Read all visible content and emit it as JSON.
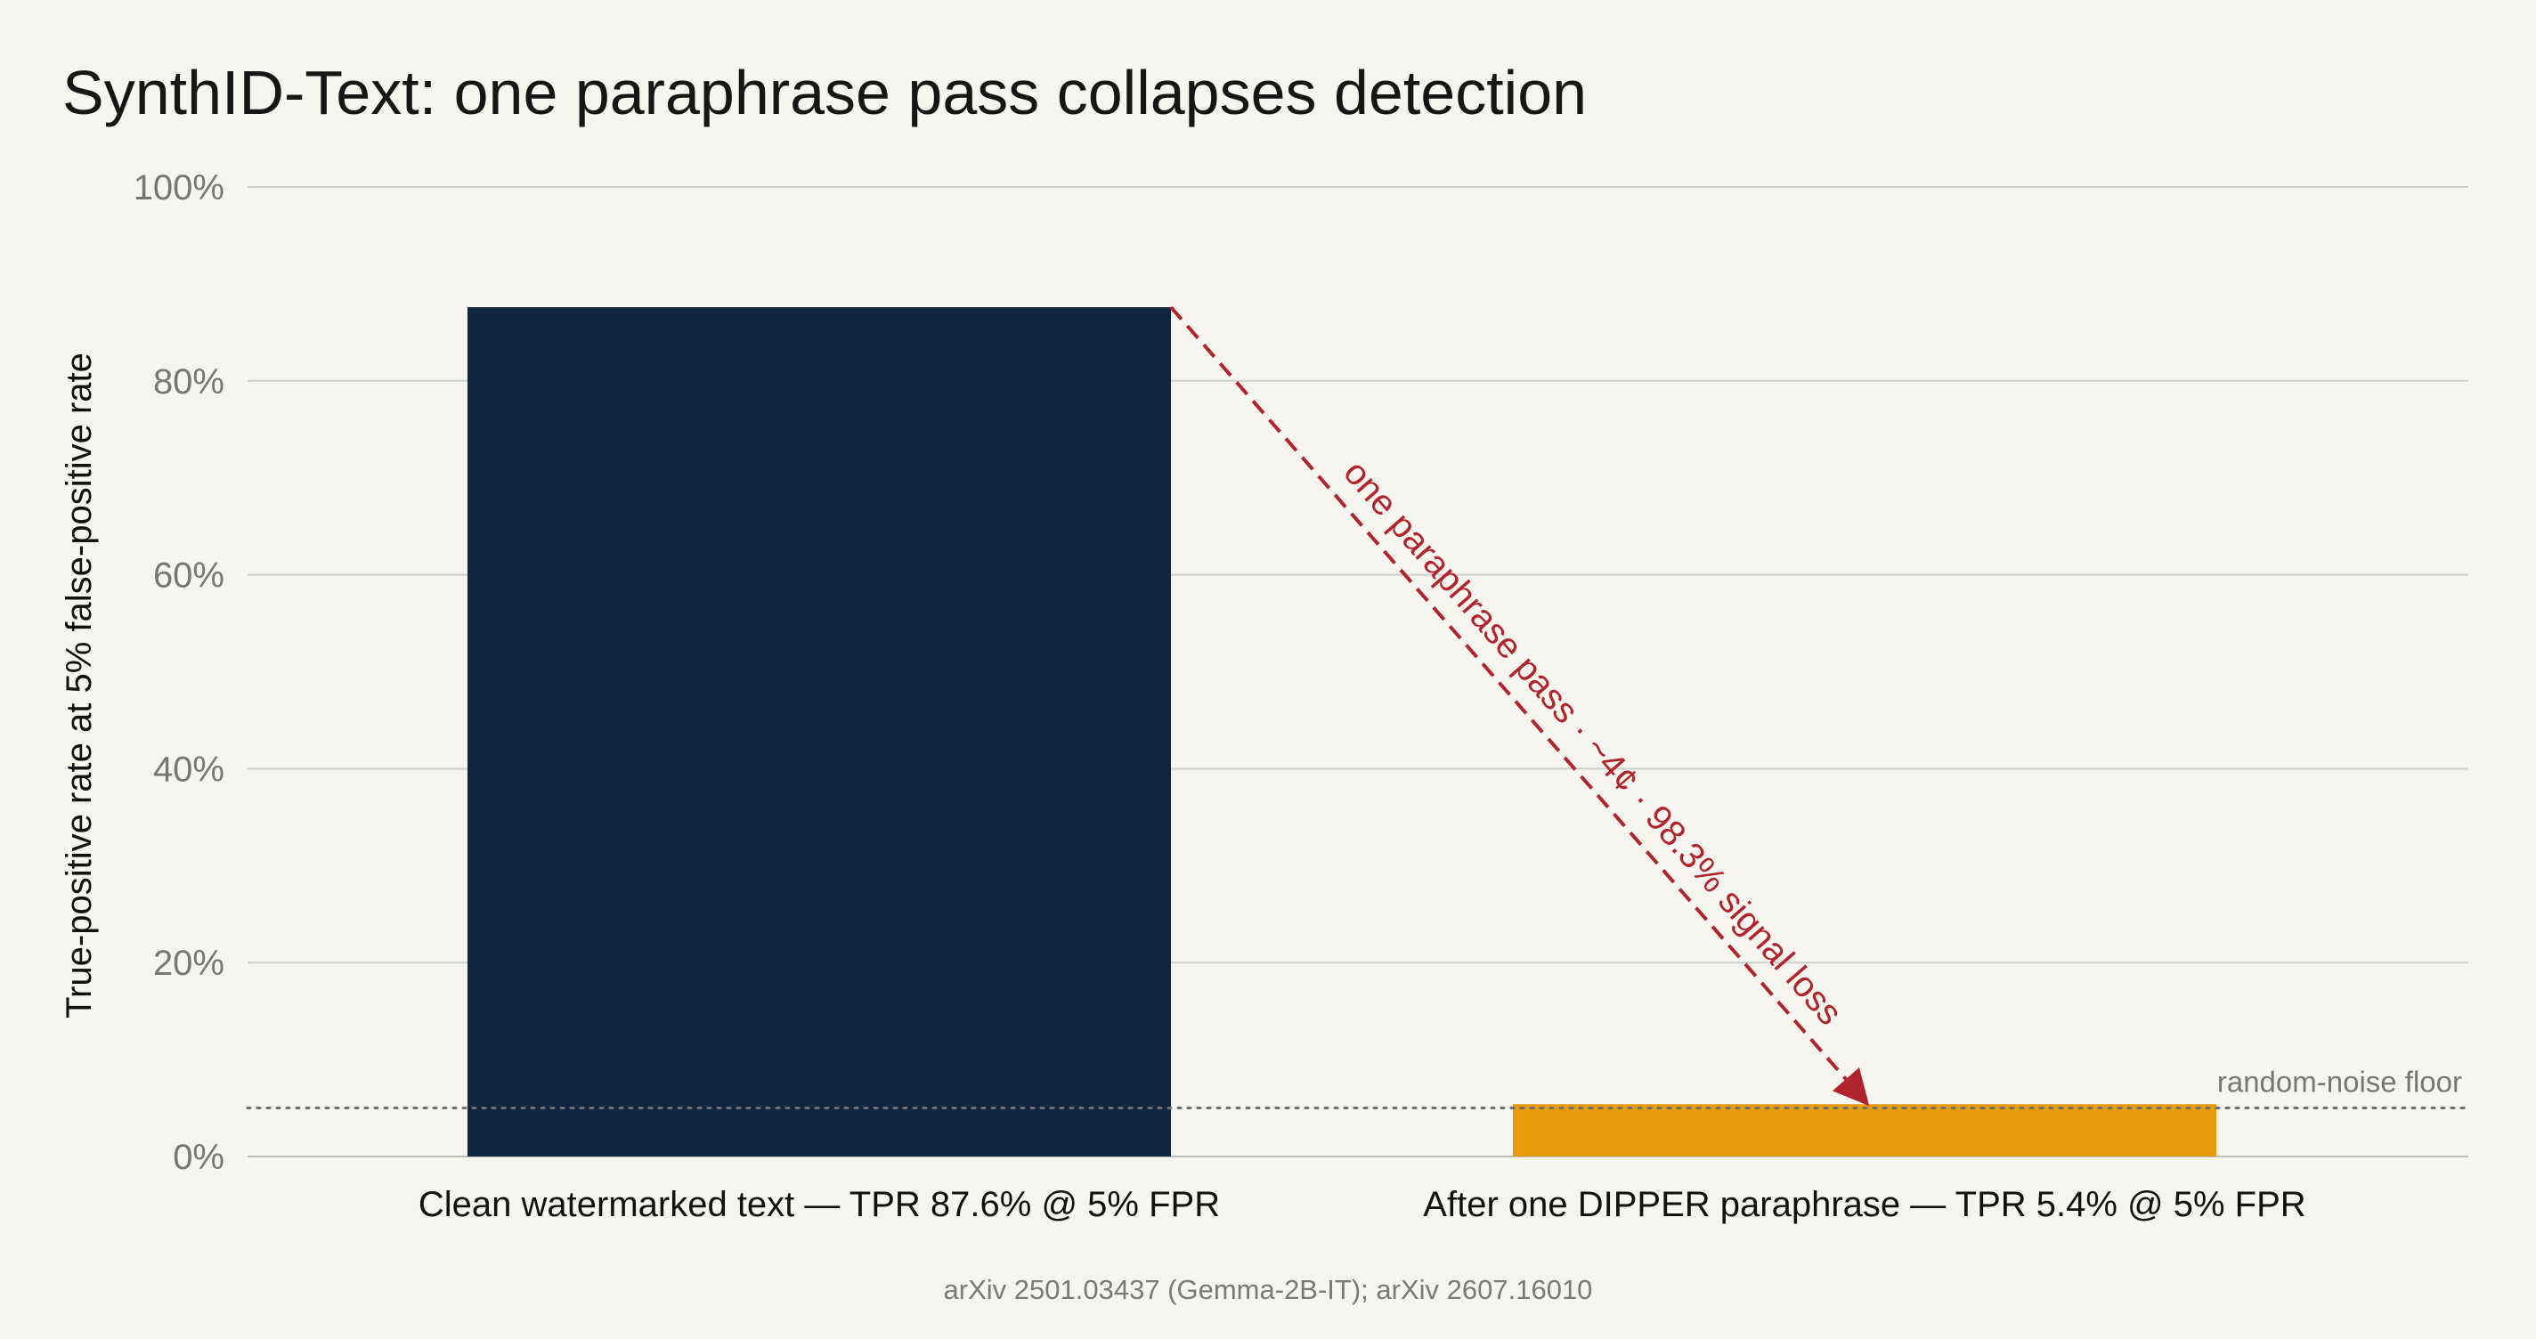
{
  "chart_data": {
    "type": "bar",
    "title": "SynthID-Text: one paraphrase pass collapses detection",
    "ylabel": "True-positive rate at 5% false-positive rate",
    "xlabel": "",
    "ylim": [
      0,
      100
    ],
    "yticks": [
      0,
      20,
      40,
      60,
      80,
      100
    ],
    "ytick_labels": [
      "0%",
      "20%",
      "40%",
      "60%",
      "80%",
      "100%"
    ],
    "grid": true,
    "categories": [
      "Clean watermarked text — TPR 87.6% @ 5% FPR",
      "After one DIPPER paraphrase — TPR 5.4% @ 5% FPR"
    ],
    "values": [
      87.6,
      5.4
    ],
    "bar_colors": [
      "#10263f",
      "#e69b0a"
    ],
    "reference_line": {
      "label": "random-noise floor",
      "value": 5,
      "style": "dotted",
      "color": "#6f6f6f"
    },
    "annotation": {
      "text": "one paraphrase pass · ~4¢ · 98.3% signal loss",
      "from_value": 87.6,
      "to_value": 5.4,
      "color": "#b0242c",
      "style": "dashed-arrow"
    },
    "source": "arXiv 2501.03437 (Gemma-2B-IT); arXiv 2607.16010"
  },
  "colors": {
    "background": "#f6f5f0",
    "grid": "#cfcfcf",
    "axis": "#bdbdbd"
  }
}
